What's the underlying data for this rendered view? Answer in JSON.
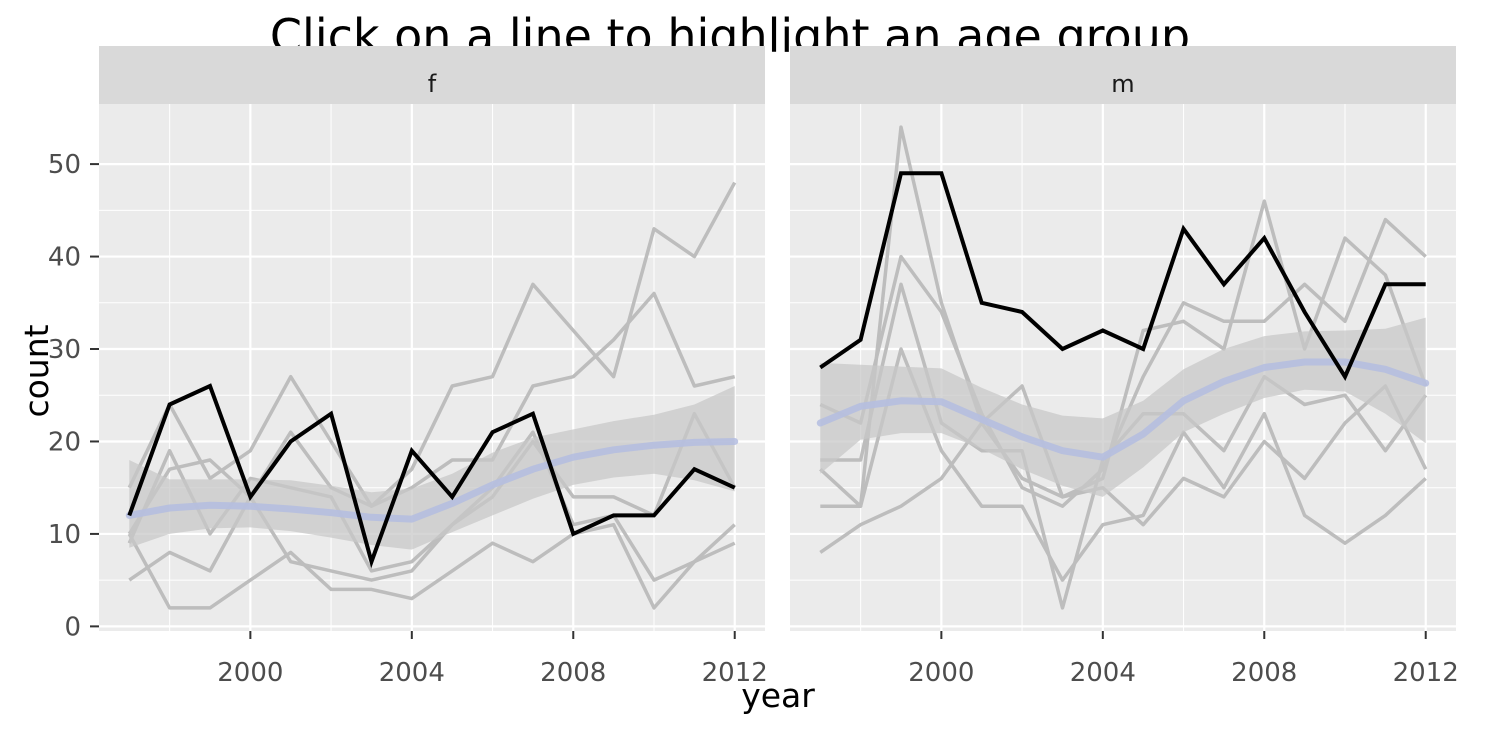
{
  "chart_data": {
    "type": "line",
    "title": "Click on a line to highlight an age group",
    "xlabel": "year",
    "ylabel": "count",
    "x_ticks": [
      2000,
      2004,
      2008,
      2012
    ],
    "y_ticks": [
      0,
      10,
      20,
      30,
      40,
      50
    ],
    "xlim": [
      1996.25,
      2012.75
    ],
    "ylim": [
      -0.5,
      56.5
    ],
    "grid": true,
    "colors": {
      "panel_bg": "#ebebeb",
      "strip_bg": "#d9d9d9",
      "grid": "#ffffff",
      "background_series": "#bdbdbd",
      "highlighted_series": "#000000",
      "smooth_line": "#b4bde0",
      "smooth_band": "#c8c8c8"
    },
    "x": [
      1997,
      1998,
      1999,
      2000,
      2001,
      2002,
      2003,
      2004,
      2005,
      2006,
      2007,
      2008,
      2009,
      2010,
      2011,
      2012
    ],
    "panels": [
      {
        "label": "f",
        "highlighted": {
          "values": [
            12,
            24,
            26,
            14,
            20,
            23,
            7,
            19,
            14,
            21,
            23,
            10,
            12,
            12,
            17,
            15
          ]
        },
        "series": [
          {
            "values": [
              15,
              24,
              16,
              19,
              27,
              20,
              13,
              17,
              26,
              27,
              37,
              32,
              27,
              43,
              40,
              48
            ]
          },
          {
            "values": [
              10,
              17,
              18,
              14,
              21,
              15,
              13,
              15,
              18,
              18,
              26,
              27,
              31,
              36,
              26,
              27
            ]
          },
          {
            "values": [
              9,
              19,
              10,
              16,
              15,
              14,
              6,
              7,
              11,
              14,
              20,
              14,
              14,
              12,
              23,
              15
            ]
          },
          {
            "values": [
              5,
              8,
              6,
              14,
              7,
              6,
              5,
              6,
              11,
              15,
              21,
              11,
              12,
              5,
              7,
              9
            ]
          },
          {
            "values": [
              10,
              2,
              2,
              5,
              8,
              4,
              4,
              3,
              6,
              9,
              7,
              10,
              11,
              2,
              7,
              11
            ]
          }
        ],
        "smooth": {
          "x": [
            1997,
            1998,
            1999,
            2000,
            2001,
            2002,
            2003,
            2004,
            2005,
            2006,
            2007,
            2008,
            2009,
            2010,
            2011,
            2012
          ],
          "y": [
            12.0,
            12.8,
            13.1,
            13.0,
            12.7,
            12.3,
            11.8,
            11.6,
            13.3,
            15.3,
            17.0,
            18.3,
            19.1,
            19.6,
            19.9,
            20.0
          ],
          "lower": [
            8.5,
            10.0,
            10.6,
            10.7,
            10.3,
            9.6,
            8.8,
            8.3,
            10.2,
            12.0,
            13.8,
            15.3,
            16.1,
            16.5,
            15.8,
            14.6
          ],
          "upper": [
            18.0,
            15.9,
            15.9,
            15.9,
            15.8,
            15.2,
            14.5,
            14.9,
            16.5,
            18.8,
            20.4,
            21.3,
            22.2,
            22.9,
            24.0,
            26.0
          ]
        }
      },
      {
        "label": "m",
        "highlighted": {
          "values": [
            28,
            31,
            49,
            49,
            35,
            34,
            30,
            32,
            30,
            43,
            37,
            42,
            34,
            27,
            37,
            37
          ]
        },
        "series": [
          {
            "values": [
              17,
              13,
              54,
              35,
              22,
              26,
              14,
              16,
              32,
              33,
              30,
              46,
              30,
              42,
              38,
              26
            ]
          },
          {
            "values": [
              24,
              22,
              40,
              34,
              23,
              15,
              13,
              17,
              27,
              35,
              33,
              33,
              37,
              33,
              44,
              40
            ]
          },
          {
            "values": [
              18,
              18,
              37,
              22,
              19,
              19,
              2,
              18,
              23,
              23,
              19,
              27,
              24,
              25,
              19,
              25
            ]
          },
          {
            "values": [
              13,
              13,
              30,
              19,
              13,
              13,
              5,
              11,
              12,
              21,
              15,
              23,
              12,
              9,
              12,
              16
            ]
          },
          {
            "values": [
              8,
              11,
              13,
              16,
              22,
              16,
              14,
              15,
              11,
              16,
              14,
              20,
              16,
              22,
              26,
              17
            ]
          }
        ],
        "smooth": {
          "x": [
            1997,
            1998,
            1999,
            2000,
            2001,
            2002,
            2003,
            2004,
            2005,
            2006,
            2007,
            2008,
            2009,
            2010,
            2011,
            2012
          ],
          "y": [
            22.0,
            23.8,
            24.4,
            24.3,
            22.4,
            20.5,
            19.0,
            18.3,
            20.8,
            24.4,
            26.5,
            28.0,
            28.6,
            28.6,
            27.8,
            26.3
          ],
          "lower": [
            16.5,
            20.2,
            20.9,
            20.9,
            19.2,
            17.0,
            15.2,
            14.0,
            17.2,
            21.0,
            23.0,
            24.7,
            25.6,
            25.4,
            23.0,
            19.8
          ],
          "upper": [
            28.5,
            28.3,
            28.1,
            27.9,
            25.8,
            24.0,
            22.8,
            22.5,
            24.4,
            27.8,
            30.0,
            31.4,
            31.9,
            32.0,
            32.2,
            33.4
          ]
        }
      }
    ]
  }
}
